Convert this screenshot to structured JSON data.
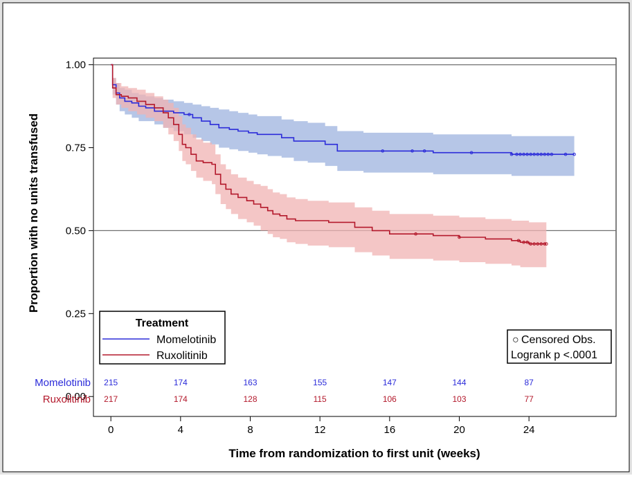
{
  "chart_data": {
    "type": "line",
    "subtype": "kaplan-meier",
    "xlabel": "Time from randomization to first unit (weeks)",
    "ylabel": "Proportion with no units transfused",
    "xlim": [
      -1,
      29
    ],
    "ylim": [
      -0.06,
      1.02
    ],
    "xticks": [
      0,
      4,
      8,
      12,
      16,
      20,
      24
    ],
    "xtick_labels": [
      "0",
      "4",
      "8",
      "12",
      "16",
      "20",
      "24"
    ],
    "yticks": [
      0,
      0.25,
      0.5,
      0.75,
      1
    ],
    "ytick_labels": [
      "0.00",
      "0.25",
      "0.50",
      "0.75",
      "1.00"
    ],
    "reference_lines": [
      0.5,
      1.0
    ],
    "legend": {
      "title": "Treatment",
      "position": "bottom-left",
      "entries": [
        "Momelotinib",
        "Ruxolitinib"
      ]
    },
    "inset_box": {
      "position": "bottom-right",
      "censored_label": "Censored Obs.",
      "censored_symbol": "○",
      "logrank": "Logrank p <.0001"
    },
    "series": [
      {
        "name": "Momelotinib",
        "color": "#2b2bd9",
        "band_color": "#9db3df",
        "x": [
          0,
          0.1,
          0.3,
          0.5,
          0.8,
          1.2,
          1.6,
          2.0,
          2.5,
          3.0,
          3.6,
          4.2,
          4.7,
          5.2,
          5.7,
          6.2,
          6.8,
          7.3,
          7.9,
          8.4,
          9.0,
          9.8,
          10.5,
          11.3,
          12.3,
          13.0,
          14.5,
          16.0,
          18.5,
          20.0,
          22.0,
          23.0,
          24.0,
          26.6
        ],
        "y": [
          1.0,
          0.94,
          0.915,
          0.9,
          0.89,
          0.885,
          0.875,
          0.87,
          0.86,
          0.86,
          0.855,
          0.85,
          0.84,
          0.83,
          0.82,
          0.81,
          0.805,
          0.8,
          0.795,
          0.79,
          0.79,
          0.78,
          0.77,
          0.77,
          0.76,
          0.74,
          0.74,
          0.74,
          0.735,
          0.735,
          0.735,
          0.73,
          0.73,
          0.73
        ],
        "lower": [
          1.0,
          0.91,
          0.88,
          0.86,
          0.85,
          0.84,
          0.83,
          0.83,
          0.82,
          0.81,
          0.8,
          0.79,
          0.78,
          0.77,
          0.76,
          0.75,
          0.745,
          0.74,
          0.735,
          0.73,
          0.725,
          0.72,
          0.71,
          0.705,
          0.695,
          0.68,
          0.675,
          0.675,
          0.67,
          0.67,
          0.67,
          0.665,
          0.665,
          0.665
        ],
        "upper": [
          1.0,
          0.96,
          0.945,
          0.93,
          0.925,
          0.915,
          0.91,
          0.905,
          0.9,
          0.895,
          0.89,
          0.885,
          0.88,
          0.875,
          0.87,
          0.865,
          0.86,
          0.855,
          0.85,
          0.845,
          0.845,
          0.835,
          0.83,
          0.825,
          0.815,
          0.8,
          0.795,
          0.795,
          0.79,
          0.79,
          0.79,
          0.785,
          0.785,
          0.785
        ],
        "censored_x": [
          4.5,
          15.6,
          17.3,
          18.0,
          20.7,
          23.0,
          23.3,
          23.5,
          23.7,
          23.9,
          24.1,
          24.3,
          24.5,
          24.7,
          24.9,
          25.1,
          25.3,
          26.1,
          26.6
        ],
        "at_risk": [
          215,
          174,
          163,
          155,
          147,
          144,
          87
        ]
      },
      {
        "name": "Ruxolitinib",
        "color": "#b3182b",
        "band_color": "#f0b3b3",
        "x": [
          0,
          0.1,
          0.3,
          0.6,
          1.0,
          1.5,
          2.0,
          2.5,
          3.0,
          3.3,
          3.6,
          3.9,
          4.1,
          4.3,
          4.6,
          4.9,
          5.3,
          5.8,
          6.0,
          6.3,
          6.6,
          6.9,
          7.3,
          7.8,
          8.2,
          8.6,
          9.0,
          9.3,
          9.7,
          10.1,
          10.6,
          11.3,
          12.5,
          14.0,
          15.0,
          16.0,
          18.5,
          20.0,
          21.5,
          22.5,
          23.0,
          23.5,
          24.0,
          25.0
        ],
        "y": [
          1.0,
          0.93,
          0.91,
          0.905,
          0.9,
          0.89,
          0.88,
          0.87,
          0.855,
          0.84,
          0.82,
          0.79,
          0.76,
          0.75,
          0.73,
          0.71,
          0.705,
          0.7,
          0.67,
          0.64,
          0.625,
          0.61,
          0.6,
          0.59,
          0.58,
          0.57,
          0.56,
          0.55,
          0.545,
          0.535,
          0.53,
          0.53,
          0.525,
          0.51,
          0.5,
          0.49,
          0.485,
          0.48,
          0.475,
          0.475,
          0.47,
          0.465,
          0.46,
          0.46
        ],
        "lower": [
          1.0,
          0.9,
          0.88,
          0.87,
          0.86,
          0.85,
          0.84,
          0.83,
          0.81,
          0.79,
          0.77,
          0.74,
          0.71,
          0.7,
          0.68,
          0.66,
          0.65,
          0.64,
          0.61,
          0.58,
          0.565,
          0.55,
          0.535,
          0.525,
          0.515,
          0.5,
          0.49,
          0.48,
          0.475,
          0.465,
          0.46,
          0.455,
          0.45,
          0.435,
          0.425,
          0.415,
          0.41,
          0.405,
          0.4,
          0.4,
          0.395,
          0.39,
          0.39,
          0.39
        ],
        "upper": [
          1.0,
          0.96,
          0.945,
          0.935,
          0.93,
          0.925,
          0.915,
          0.905,
          0.895,
          0.885,
          0.87,
          0.845,
          0.82,
          0.81,
          0.79,
          0.775,
          0.765,
          0.76,
          0.73,
          0.7,
          0.685,
          0.67,
          0.66,
          0.65,
          0.64,
          0.635,
          0.625,
          0.615,
          0.61,
          0.6,
          0.595,
          0.59,
          0.585,
          0.57,
          0.56,
          0.55,
          0.545,
          0.54,
          0.535,
          0.535,
          0.53,
          0.53,
          0.525,
          0.525
        ],
        "censored_x": [
          17.5,
          20.0,
          23.4,
          23.7,
          23.9,
          24.1,
          24.3,
          24.5,
          24.7,
          24.9,
          25.0
        ],
        "at_risk": [
          217,
          174,
          128,
          115,
          106,
          103,
          77
        ]
      }
    ]
  }
}
